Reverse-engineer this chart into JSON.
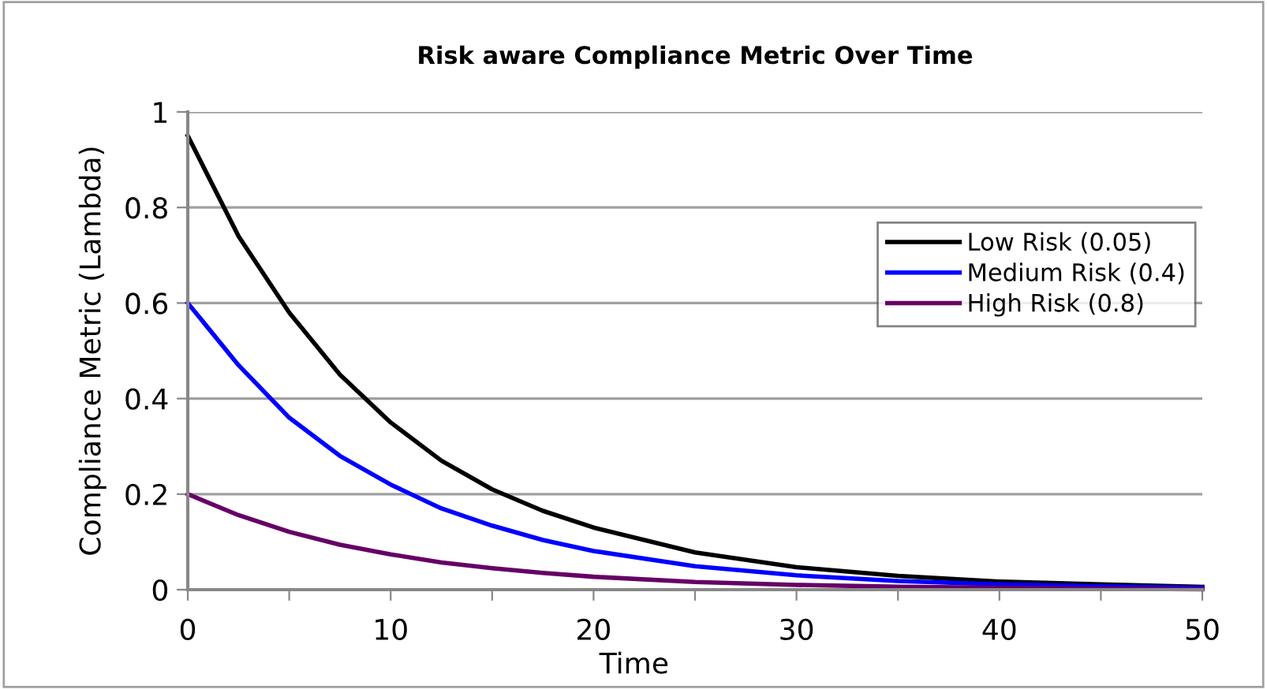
{
  "chart_data": {
    "type": "line",
    "title": "Risk aware Compliance Metric Over Time",
    "xlabel": "Time",
    "ylabel": "Compliance Metric (Lambda)",
    "x": [
      0,
      2.5,
      5,
      7.5,
      10,
      12.5,
      15,
      17.5,
      20,
      25,
      30,
      35,
      40,
      45,
      50
    ],
    "series": [
      {
        "name": "Low Risk (0.05)",
        "color": "#000000",
        "values": [
          0.95,
          0.74,
          0.58,
          0.45,
          0.35,
          0.27,
          0.21,
          0.165,
          0.13,
          0.078,
          0.047,
          0.029,
          0.017,
          0.011,
          0.006
        ]
      },
      {
        "name": "Medium Risk (0.4)",
        "color": "#0000ff",
        "values": [
          0.6,
          0.47,
          0.36,
          0.28,
          0.22,
          0.17,
          0.134,
          0.104,
          0.081,
          0.049,
          0.03,
          0.018,
          0.011,
          0.007,
          0.004
        ]
      },
      {
        "name": "High Risk (0.8)",
        "color": "#660066",
        "values": [
          0.2,
          0.156,
          0.121,
          0.094,
          0.074,
          0.057,
          0.045,
          0.035,
          0.027,
          0.016,
          0.01,
          0.006,
          0.004,
          0.002,
          0.001
        ]
      }
    ],
    "xlim": [
      0,
      50
    ],
    "xticks": [
      0,
      {
        "value": 5,
        "label": null
      },
      10,
      {
        "value": 15,
        "label": null
      },
      20,
      {
        "value": 25,
        "label": null
      },
      30,
      {
        "value": 35,
        "label": null
      },
      40,
      {
        "value": 45,
        "label": null
      },
      50
    ],
    "ylim": [
      0,
      1
    ],
    "yticks": [
      0,
      0.2,
      0.4,
      0.6,
      0.8,
      1
    ],
    "grid": "y",
    "legend": "right",
    "marker": "none",
    "line_style": "solid"
  }
}
